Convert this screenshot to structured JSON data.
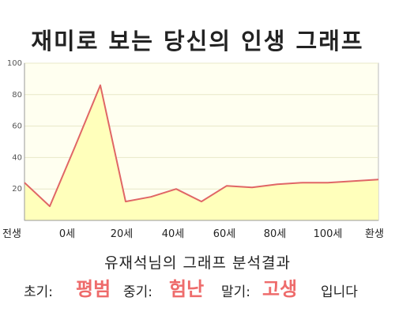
{
  "title": "재미로 보는 당신의 인생 그래프",
  "summary": "유재석님의 그래프 분석결과",
  "stages": [
    {
      "label": "초기:",
      "value": "평범"
    },
    {
      "label": "중기:",
      "value": "험난"
    },
    {
      "label": "말기:",
      "value": "고생"
    }
  ],
  "ending": "입니다",
  "colors": {
    "line": "#e06666",
    "fill": "#ffffbb",
    "plot_bg": "#fffff0",
    "highlight": "#ee6b6b",
    "grid": "#e8e8c8"
  },
  "chart_data": {
    "type": "area",
    "title": "재미로 보는 당신의 인생 그래프",
    "xlabel": "",
    "ylabel": "",
    "ylim": [
      0,
      100
    ],
    "yticks": [
      20,
      40,
      60,
      80,
      100
    ],
    "xticks": [
      "전생",
      "0세",
      "20세",
      "40세",
      "60세",
      "80세",
      "100세",
      "환생"
    ],
    "grid": true,
    "x": [
      "전생",
      "",
      "0세",
      "",
      "20세",
      "",
      "40세",
      "",
      "60세",
      "",
      "80세",
      "",
      "100세",
      "",
      "환생"
    ],
    "values": [
      24,
      9,
      47,
      86,
      12,
      15,
      20,
      12,
      22,
      21,
      23,
      24,
      24,
      25,
      26
    ]
  }
}
